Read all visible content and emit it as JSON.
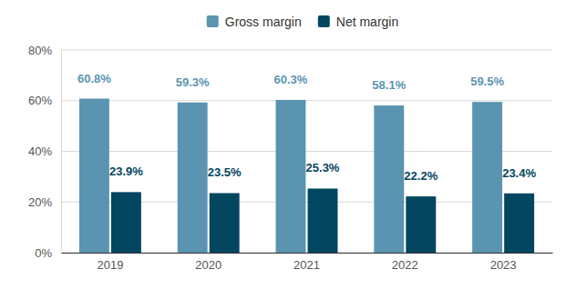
{
  "chart_data": {
    "type": "bar",
    "categories": [
      "2019",
      "2020",
      "2021",
      "2022",
      "2023"
    ],
    "series": [
      {
        "name": "Gross margin",
        "color": "#5b94b1",
        "values": [
          60.8,
          59.3,
          60.3,
          58.1,
          59.5
        ],
        "value_labels": [
          "60.8%",
          "59.3%",
          "60.3%",
          "58.1%",
          "59.5%"
        ]
      },
      {
        "name": "Net margin",
        "color": "#03465f",
        "values": [
          23.9,
          23.5,
          25.3,
          22.2,
          23.4
        ],
        "value_labels": [
          "23.9%",
          "23.5%",
          "25.3%",
          "22.2%",
          "23.4%"
        ]
      }
    ],
    "ylim": [
      0,
      80
    ],
    "yticks": [
      {
        "value": 0,
        "label": "0%"
      },
      {
        "value": 20,
        "label": "20%"
      },
      {
        "value": 40,
        "label": "40%"
      },
      {
        "value": 60,
        "label": "60%"
      },
      {
        "value": 80,
        "label": "80%"
      }
    ],
    "grid": true,
    "legend": "top",
    "data_labels": true
  }
}
